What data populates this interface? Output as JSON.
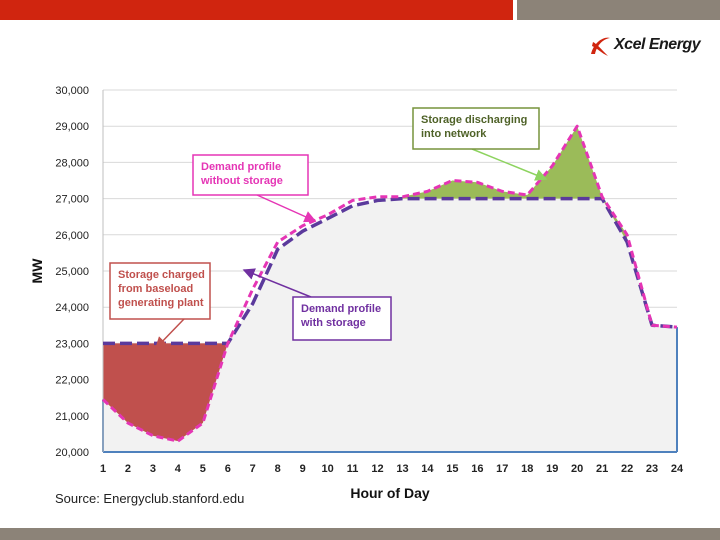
{
  "brand": {
    "logo_text": "Xcel Energy",
    "accent_red": "#d0250f",
    "accent_gray": "#8c8378"
  },
  "source_note": "Source: Energyclub.stanford.edu",
  "chart_data": {
    "type": "line",
    "title": "",
    "xlabel": "Hour of Day",
    "ylabel": "MW",
    "xlim": [
      1,
      24
    ],
    "ylim": [
      20000,
      30000
    ],
    "x_ticks": [
      "1",
      "2",
      "3",
      "4",
      "5",
      "6",
      "7",
      "8",
      "9",
      "10",
      "11",
      "12",
      "13",
      "14",
      "15",
      "16",
      "17",
      "18",
      "19",
      "20",
      "21",
      "22",
      "23",
      "24"
    ],
    "y_ticks": [
      "20,000",
      "21,000",
      "22,000",
      "23,000",
      "24,000",
      "25,000",
      "26,000",
      "27,000",
      "28,000",
      "29,000",
      "30,000"
    ],
    "x": [
      1,
      2,
      3,
      4,
      5,
      6,
      7,
      8,
      9,
      10,
      11,
      12,
      13,
      14,
      15,
      16,
      17,
      18,
      19,
      20,
      21,
      22,
      23,
      24
    ],
    "series": [
      {
        "name": "Demand profile without storage",
        "color": "#e535b5",
        "values": [
          21450,
          20800,
          20450,
          20300,
          20800,
          23000,
          24500,
          25800,
          26250,
          26550,
          26950,
          27050,
          27050,
          27200,
          27500,
          27450,
          27200,
          27100,
          27900,
          29000,
          27050,
          26000,
          23500,
          23450
        ]
      },
      {
        "name": "Demand profile with storage",
        "color": "#5b3a9c",
        "values": [
          23000,
          23000,
          23000,
          23000,
          23000,
          23000,
          24100,
          25600,
          26100,
          26450,
          26800,
          26950,
          27000,
          27000,
          27000,
          27000,
          27000,
          27000,
          27000,
          27000,
          27000,
          25800,
          23500,
          23450
        ]
      }
    ],
    "shaded_regions": [
      {
        "name": "Storage charged",
        "color": "#c0504d"
      },
      {
        "name": "Storage discharged",
        "color": "#9bbb59"
      },
      {
        "name": "Baseline demand area",
        "color": "#f2f2f2"
      }
    ],
    "annotations": [
      {
        "text": "Storage discharging into network",
        "lines": [
          "Storage discharging",
          "into network"
        ],
        "color": "#4f6228",
        "border": "#77933c",
        "arrow_color": "#8dd35f"
      },
      {
        "text": "Demand profile without storage",
        "lines": [
          "Demand profile",
          "without storage"
        ],
        "color": "#e535b5",
        "border": "#e535b5",
        "arrow_color": "#e535b5"
      },
      {
        "text": "Storage charged from baseload generating plant",
        "lines": [
          "Storage charged",
          "from baseload",
          "generating plant"
        ],
        "color": "#c0504d",
        "border": "#c0504d",
        "arrow_color": "#c0504d"
      },
      {
        "text": "Demand profile with storage",
        "lines": [
          "Demand profile",
          "with storage"
        ],
        "color": "#7030a0",
        "border": "#7030a0",
        "arrow_color": "#7030a0"
      }
    ]
  }
}
